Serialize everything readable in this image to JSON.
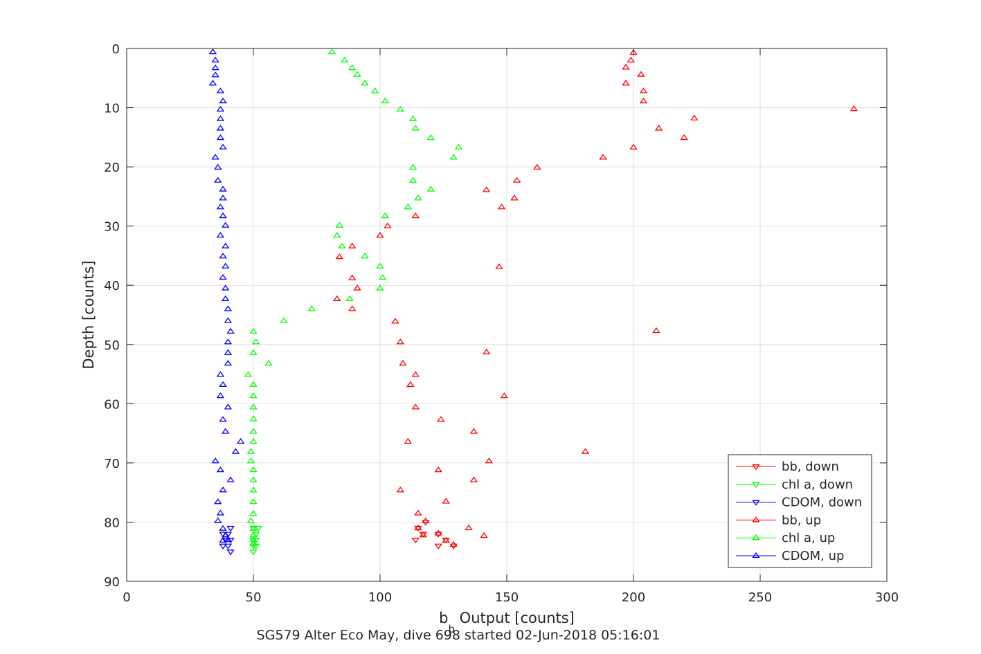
{
  "chart_data": {
    "type": "scatter",
    "xlabel": "b",
    "xlabel_subscript": "b",
    "xlabel_suffix": " Output [counts]",
    "ylabel": "Depth [counts]",
    "caption": "SG579 Alter Eco May, dive 698 started 02-Jun-2018 05:16:01",
    "xlim": [
      0,
      300
    ],
    "ylim": [
      0,
      90
    ],
    "y_reversed": true,
    "grid": true,
    "legend_position": "bottom-right",
    "x_ticks": [
      "0",
      "50",
      "100",
      "150",
      "200",
      "250",
      "300"
    ],
    "y_ticks": [
      "0",
      "10",
      "20",
      "30",
      "40",
      "50",
      "60",
      "70",
      "80",
      "90"
    ],
    "series": [
      {
        "name": "bb, down",
        "color": "#ff0000",
        "marker": "triangle-down",
        "points": [
          [
            115,
            81
          ],
          [
            118,
            80
          ],
          [
            114,
            83
          ],
          [
            117,
            82
          ],
          [
            123,
            82
          ],
          [
            123,
            84
          ],
          [
            126,
            83
          ],
          [
            129,
            84
          ]
        ]
      },
      {
        "name": "chl a, down",
        "color": "#00ff00",
        "marker": "triangle-down",
        "points": [
          [
            50,
            81
          ],
          [
            52,
            81
          ],
          [
            51,
            82
          ],
          [
            50,
            83
          ],
          [
            51,
            83
          ],
          [
            50,
            84
          ],
          [
            51,
            84
          ],
          [
            50,
            85
          ]
        ]
      },
      {
        "name": "CDOM, down",
        "color": "#0000ff",
        "marker": "triangle-down",
        "points": [
          [
            41,
            81
          ],
          [
            38,
            82
          ],
          [
            40,
            82
          ],
          [
            39,
            83
          ],
          [
            41,
            83
          ],
          [
            38,
            84
          ],
          [
            40,
            84
          ],
          [
            41,
            85
          ]
        ]
      },
      {
        "name": "bb, up",
        "color": "#ff0000",
        "marker": "triangle-up",
        "points": [
          [
            129,
            83.8
          ],
          [
            126,
            83.1
          ],
          [
            141,
            82.3
          ],
          [
            117,
            82.2
          ],
          [
            123,
            81.9
          ],
          [
            115,
            81.0
          ],
          [
            135,
            81.0
          ],
          [
            118,
            79.8
          ],
          [
            115,
            78.5
          ],
          [
            126,
            76.5
          ],
          [
            108,
            74.6
          ],
          [
            137,
            72.9
          ],
          [
            123,
            71.2
          ],
          [
            143,
            69.7
          ],
          [
            181,
            68.1
          ],
          [
            111,
            66.4
          ],
          [
            137,
            64.7
          ],
          [
            124,
            62.7
          ],
          [
            114,
            60.6
          ],
          [
            149,
            58.7
          ],
          [
            112,
            56.8
          ],
          [
            114,
            55.1
          ],
          [
            109,
            53.2
          ],
          [
            142,
            51.3
          ],
          [
            108,
            49.6
          ],
          [
            209,
            47.7
          ],
          [
            106,
            46.1
          ],
          [
            89,
            44.0
          ],
          [
            83,
            42.3
          ],
          [
            91,
            40.5
          ],
          [
            89,
            38.8
          ],
          [
            147,
            36.9
          ],
          [
            84,
            35.2
          ],
          [
            89,
            33.4
          ],
          [
            100,
            31.6
          ],
          [
            103,
            30.0
          ],
          [
            114,
            28.3
          ],
          [
            148,
            26.8
          ],
          [
            153,
            25.3
          ],
          [
            142,
            23.9
          ],
          [
            154,
            22.3
          ],
          [
            162,
            20.1
          ],
          [
            188,
            18.4
          ],
          [
            200,
            16.7
          ],
          [
            220,
            15.1
          ],
          [
            210,
            13.5
          ],
          [
            224,
            11.8
          ],
          [
            287,
            10.2
          ],
          [
            204,
            8.9
          ],
          [
            204,
            7.2
          ],
          [
            197,
            5.9
          ],
          [
            203,
            4.4
          ],
          [
            197,
            3.2
          ],
          [
            199,
            2.0
          ],
          [
            200,
            0.7
          ]
        ]
      },
      {
        "name": "chl a, up",
        "color": "#00ff00",
        "marker": "triangle-up",
        "points": [
          [
            81,
            0.6
          ],
          [
            86,
            2.0
          ],
          [
            89,
            3.3
          ],
          [
            91,
            4.4
          ],
          [
            94,
            5.9
          ],
          [
            98,
            7.2
          ],
          [
            102,
            8.9
          ],
          [
            108,
            10.3
          ],
          [
            113,
            11.9
          ],
          [
            114,
            13.5
          ],
          [
            120,
            15.1
          ],
          [
            131,
            16.7
          ],
          [
            129,
            18.4
          ],
          [
            113,
            20.1
          ],
          [
            113,
            22.3
          ],
          [
            120,
            23.8
          ],
          [
            115,
            25.3
          ],
          [
            111,
            26.8
          ],
          [
            102,
            28.3
          ],
          [
            84,
            29.9
          ],
          [
            83,
            31.6
          ],
          [
            85,
            33.4
          ],
          [
            94,
            35.1
          ],
          [
            100,
            36.8
          ],
          [
            101,
            38.7
          ],
          [
            100,
            40.5
          ],
          [
            88,
            42.3
          ],
          [
            73,
            44.0
          ],
          [
            62,
            46.0
          ],
          [
            50,
            47.8
          ],
          [
            51,
            49.6
          ],
          [
            50,
            51.4
          ],
          [
            56,
            53.2
          ],
          [
            48,
            55.1
          ],
          [
            50,
            56.8
          ],
          [
            50,
            58.7
          ],
          [
            50,
            60.6
          ],
          [
            50,
            62.6
          ],
          [
            50,
            64.7
          ],
          [
            50,
            66.4
          ],
          [
            49,
            68.1
          ],
          [
            49,
            69.7
          ],
          [
            50,
            71.2
          ],
          [
            50,
            72.9
          ],
          [
            50,
            74.6
          ],
          [
            50,
            76.6
          ],
          [
            50,
            78.6
          ],
          [
            49,
            79.8
          ],
          [
            50,
            81.1
          ],
          [
            50,
            82.2
          ],
          [
            50,
            83.0
          ],
          [
            50,
            83.7
          ]
        ]
      },
      {
        "name": "CDOM, up",
        "color": "#0000ff",
        "marker": "triangle-up",
        "points": [
          [
            34,
            0.6
          ],
          [
            35,
            2.0
          ],
          [
            35,
            3.3
          ],
          [
            35,
            4.5
          ],
          [
            34,
            5.9
          ],
          [
            37,
            7.2
          ],
          [
            38,
            8.9
          ],
          [
            37,
            10.3
          ],
          [
            37,
            11.9
          ],
          [
            37,
            13.5
          ],
          [
            37,
            15.1
          ],
          [
            38,
            16.7
          ],
          [
            35,
            18.4
          ],
          [
            36,
            20.1
          ],
          [
            36,
            22.3
          ],
          [
            38,
            23.8
          ],
          [
            38,
            25.3
          ],
          [
            37,
            26.8
          ],
          [
            38,
            28.3
          ],
          [
            39,
            29.9
          ],
          [
            37,
            31.6
          ],
          [
            39,
            33.4
          ],
          [
            38,
            35.1
          ],
          [
            39,
            36.8
          ],
          [
            38,
            38.7
          ],
          [
            39,
            40.5
          ],
          [
            39,
            42.3
          ],
          [
            40,
            44.0
          ],
          [
            40,
            46.0
          ],
          [
            41,
            47.8
          ],
          [
            40,
            49.6
          ],
          [
            40,
            51.4
          ],
          [
            40,
            53.2
          ],
          [
            37,
            55.1
          ],
          [
            38,
            56.8
          ],
          [
            37,
            58.7
          ],
          [
            40,
            60.6
          ],
          [
            38,
            62.7
          ],
          [
            39,
            64.7
          ],
          [
            45,
            66.4
          ],
          [
            43,
            68.1
          ],
          [
            35,
            69.7
          ],
          [
            37,
            71.2
          ],
          [
            41,
            72.9
          ],
          [
            38,
            74.6
          ],
          [
            36,
            76.6
          ],
          [
            37,
            78.5
          ],
          [
            36,
            79.8
          ],
          [
            38,
            81.1
          ],
          [
            39,
            82.2
          ],
          [
            40,
            83.0
          ],
          [
            38,
            83.1
          ]
        ]
      }
    ]
  }
}
